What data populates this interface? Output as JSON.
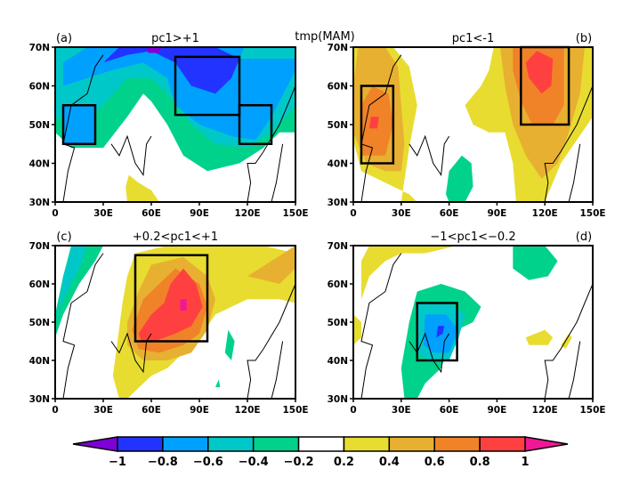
{
  "chart_data": {
    "type": "heatmap",
    "title": "tmp(MAM)",
    "description": "Composite spring (MAM) temperature anomaly maps over Eurasia for four PC1 conditions",
    "colorbar": {
      "levels": [
        -1,
        -0.8,
        -0.6,
        -0.4,
        -0.2,
        0.2,
        0.4,
        0.6,
        0.8,
        1
      ],
      "tick_labels": [
        "−1",
        "−0.8",
        "−0.6",
        "−0.4",
        "−0.2",
        "0.2",
        "0.4",
        "0.6",
        "0.8",
        "1"
      ],
      "colors": [
        "#2233ff",
        "#00a0ff",
        "#00c8c8",
        "#00d28c",
        "#ffffff",
        "#e8dc30",
        "#e8b030",
        "#f08228",
        "#ff4040"
      ],
      "under_color": "#8000d8",
      "over_color": "#f01896",
      "extend": "both"
    },
    "panels": [
      {
        "label": "(a)",
        "title": "pc1>+1",
        "label_position": "left",
        "xlim": [
          0,
          150
        ],
        "ylim": [
          30,
          70
        ],
        "xticks": [
          "0",
          "30E",
          "60E",
          "90E",
          "120E",
          "150E"
        ],
        "yticks": [
          "30N",
          "40N",
          "50N",
          "60N",
          "70N"
        ],
        "boxes": [
          {
            "lon": [
              5,
              25
            ],
            "lat": [
              45,
              55
            ]
          },
          {
            "lon": [
              75,
              115
            ],
            "lat": [
              52.5,
              67.5
            ]
          },
          {
            "lon": [
              115,
              135
            ],
            "lat": [
              45,
              55
            ]
          }
        ],
        "regions": [
          {
            "value": -0.5,
            "desc": "northern Eurasia band (cyan/teal)"
          },
          {
            "value": -0.7,
            "desc": "Siberia and Scandinavia (blue)"
          },
          {
            "value": -0.9,
            "desc": "central Siberia core (dark blue)"
          },
          {
            "value": -0.3,
            "desc": "southern margin (green)"
          },
          {
            "value": 0.3,
            "desc": "Middle East small patch (yellow)"
          }
        ]
      },
      {
        "label": "(b)",
        "title": "pc1<-1",
        "label_position": "right",
        "xlim": [
          0,
          150
        ],
        "ylim": [
          30,
          70
        ],
        "xticks": [
          "0",
          "30E",
          "60E",
          "90E",
          "120E",
          "150E"
        ],
        "yticks": [
          "30N",
          "40N",
          "50N",
          "60N",
          "70N"
        ],
        "boxes": [
          {
            "lon": [
              5,
              25
            ],
            "lat": [
              40,
              60
            ]
          },
          {
            "lon": [
              105,
              135
            ],
            "lat": [
              50,
              70
            ]
          }
        ],
        "regions": [
          {
            "value": 0.5,
            "desc": "Europe (orange)"
          },
          {
            "value": 0.7,
            "desc": "east Asia/Siberia (orange)"
          },
          {
            "value": 0.9,
            "desc": "cores over central Europe and Siberia (red)"
          },
          {
            "value": 0.3,
            "desc": "surrounding fringe (yellow)"
          },
          {
            "value": -0.3,
            "desc": "Iran/Arabia patch (green)"
          }
        ]
      },
      {
        "label": "(c)",
        "title": "+0.2<pc1<+1",
        "label_position": "left",
        "xlim": [
          0,
          150
        ],
        "ylim": [
          30,
          70
        ],
        "xticks": [
          "0",
          "30E",
          "60E",
          "90E",
          "120E",
          "150E"
        ],
        "yticks": [
          "30N",
          "40N",
          "50N",
          "60N",
          "70N"
        ],
        "boxes": [
          {
            "lon": [
              50,
              95
            ],
            "lat": [
              45,
              67.5
            ]
          }
        ],
        "regions": [
          {
            "value": 0.9,
            "desc": "central Asia core (red)"
          },
          {
            "value": 1.1,
            "desc": "small peak (magenta)"
          },
          {
            "value": 0.7,
            "desc": "surrounding (orange)"
          },
          {
            "value": 0.3,
            "desc": "broad yellow"
          },
          {
            "value": -0.3,
            "desc": "western Europe and east Asia patches (green)"
          }
        ]
      },
      {
        "label": "(d)",
        "title": "−1<pc1<−0.2",
        "label_position": "right",
        "xlim": [
          0,
          150
        ],
        "ylim": [
          30,
          70
        ],
        "xticks": [
          "0",
          "30E",
          "60E",
          "90E",
          "120E",
          "150E"
        ],
        "yticks": [
          "30N",
          "40N",
          "50N",
          "60N",
          "70N"
        ],
        "boxes": [
          {
            "lon": [
              40,
              65
            ],
            "lat": [
              40,
              55
            ]
          }
        ],
        "regions": [
          {
            "value": -0.3,
            "desc": "central Asia (green)"
          },
          {
            "value": -0.5,
            "desc": "Caspian area (teal)"
          },
          {
            "value": -0.7,
            "desc": "core (blue)"
          },
          {
            "value": -0.9,
            "desc": "small center (dark blue)"
          },
          {
            "value": 0.3,
            "desc": "Scandinavia and east Asia patches (yellow)"
          }
        ]
      }
    ]
  }
}
